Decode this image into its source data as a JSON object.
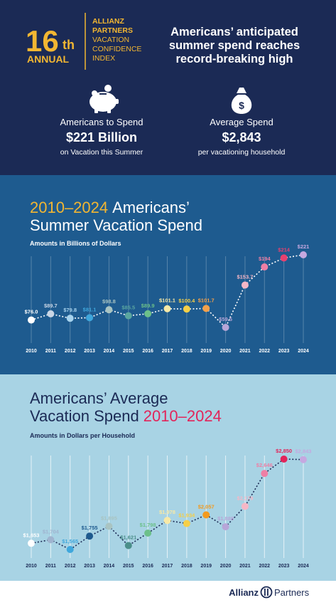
{
  "header": {
    "number": "16",
    "suffix": "th",
    "annual": "ANNUAL",
    "brand": [
      "ALLIANZ",
      "PARTNERS"
    ],
    "index": [
      "VACATION",
      "CONFIDENCE",
      "INDEX"
    ],
    "headline": [
      "Americans’ anticipated",
      "summer spend reaches",
      "record-breaking high"
    ]
  },
  "stats": [
    {
      "label": "Americans to Spend",
      "value": "$221 Billion",
      "note": "on Vacation this Summer"
    },
    {
      "label": "Average Spend",
      "value": "$2,843",
      "note": "per vacationing household"
    }
  ],
  "chart_data": [
    {
      "type": "line",
      "title": [
        [
          "2010–2024",
          "Americans’"
        ],
        [
          "Summer Vacation Spend"
        ]
      ],
      "subtitle": "Amounts in Billions of Dollars",
      "x": [
        2010,
        2011,
        2012,
        2013,
        2014,
        2015,
        2016,
        2017,
        2018,
        2019,
        2020,
        2021,
        2022,
        2023,
        2024
      ],
      "values": [
        76.0,
        89.7,
        79.8,
        81.1,
        98.8,
        85.5,
        89.9,
        101.1,
        100.4,
        101.7,
        59.5,
        153.7,
        194,
        214,
        221
      ],
      "value_labels": [
        "$76.0",
        "$89.7",
        "$79.8",
        "$81.1",
        "$98.8",
        "$85.5",
        "$89.9",
        "$101.1",
        "$100.4",
        "$101.7",
        "$59.5",
        "$153.7",
        "$194",
        "$214",
        "$221"
      ],
      "line_color": "#ffffff",
      "point_colors": [
        "#ffffff",
        "#c9d6e6",
        "#a7d3ee",
        "#3fa7dc",
        "#a9c4c2",
        "#5aa6a0",
        "#6cc08a",
        "#f7e9a6",
        "#f6cf47",
        "#f3a04a",
        "#b7a6d8",
        "#f6b7c6",
        "#ee7fa5",
        "#e8416f",
        "#c5a8e0"
      ]
    },
    {
      "type": "line",
      "title": [
        [
          "Americans’ Average"
        ],
        [
          "Vacation Spend",
          "2010–2024"
        ]
      ],
      "subtitle": "Amounts in Dollars per Household",
      "x": [
        2010,
        2011,
        2012,
        2013,
        2014,
        2015,
        2016,
        2017,
        2018,
        2019,
        2020,
        2021,
        2022,
        2023,
        2024
      ],
      "values": [
        1653,
        1704,
        1565,
        1755,
        1895,
        1621,
        1798,
        1978,
        1934,
        2057,
        1888,
        2179,
        2646,
        2850,
        2843
      ],
      "value_labels": [
        "$1,653",
        "$1,704",
        "$1,565",
        "$1,755",
        "$1,895",
        "$1,621",
        "$1,798",
        "$1,978",
        "$1,934",
        "$2,057",
        "$1,888",
        "$2,179",
        "$2,646",
        "$2,850",
        "$2,843"
      ],
      "line_color": "#1b2a55",
      "point_colors": [
        "#ffffff",
        "#9fb4cf",
        "#3fa7dc",
        "#1e5a8e",
        "#a9c4c2",
        "#4b8f8a",
        "#6cc08a",
        "#f7e9a6",
        "#f6cf47",
        "#f39a1e",
        "#b7a6d8",
        "#f6b7c6",
        "#ee7fa5",
        "#e2245a",
        "#c5a8e0"
      ]
    }
  ],
  "footer": [
    "Allianz",
    "Partners"
  ]
}
